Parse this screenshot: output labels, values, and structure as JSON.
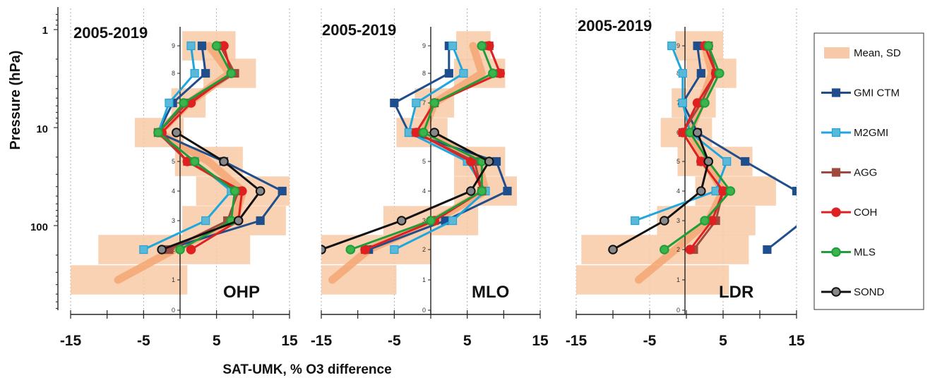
{
  "chart_data": {
    "type": "line",
    "y_axis": {
      "label": "Pressure (hPa)",
      "scale": "log",
      "direction": "reversed",
      "ticks": [
        "1",
        "10",
        "100"
      ]
    },
    "x_axis": {
      "label": "SAT-UMK, % O3 difference",
      "ticks": [
        "-15",
        "-5",
        "5",
        "15"
      ],
      "range": [
        -15,
        15
      ]
    },
    "layer_axis": {
      "ticks": [
        "0",
        "1",
        "2",
        "3",
        "4",
        "5",
        "6",
        "7",
        "8",
        "9"
      ]
    },
    "legend": {
      "placement": "right",
      "entries": [
        "Mean, SD",
        "GMI CTM",
        "M2GMI",
        "AGG",
        "COH",
        "MLS",
        "SOND"
      ]
    },
    "series_styles": {
      "GMI CTM": {
        "color": "#1f4e8c",
        "marker": "square"
      },
      "M2GMI": {
        "color": "#1ea7dc",
        "marker": "square",
        "marker_fill": "#5bb8d6"
      },
      "AGG": {
        "color": "#9e4a3f",
        "marker": "square"
      },
      "COH": {
        "color": "#e02020",
        "marker": "circle"
      },
      "MLS": {
        "color": "#1e9e3a",
        "marker": "circle",
        "marker_fill": "#3cb44b"
      },
      "SOND": {
        "color": "#111111",
        "marker": "circle",
        "marker_fill": "#888888"
      },
      "Mean, SD": {
        "color": "#f5a878",
        "type": "band"
      }
    },
    "panels": [
      {
        "title": "2005-2019",
        "station": "OHP",
        "layers": [
          1,
          2,
          3,
          4,
          5,
          6,
          7,
          8,
          9
        ],
        "sd_band": [
          {
            "layer": 1,
            "lo": -15,
            "hi": 1
          },
          {
            "layer": 2,
            "lo": -11.2,
            "hi": 9.6
          },
          {
            "layer": 3,
            "lo": 0.3,
            "hi": 14.5
          },
          {
            "layer": 4,
            "lo": 2.2,
            "hi": 15.0
          },
          {
            "layer": 5,
            "lo": -0.7,
            "hi": 8.6
          },
          {
            "layer": 6,
            "lo": -6.2,
            "hi": 0.5
          },
          {
            "layer": 7,
            "lo": -1.2,
            "hi": 3.5
          },
          {
            "layer": 8,
            "lo": 3.2,
            "hi": 10.4
          },
          {
            "layer": 9,
            "lo": 0.3,
            "hi": 7.6
          }
        ],
        "mean": [
          {
            "layer": 1,
            "x": -8.5
          },
          {
            "layer": 2,
            "x": -0.8
          },
          {
            "layer": 3,
            "x": 7.5
          },
          {
            "layer": 4,
            "x": 8.6
          },
          {
            "layer": 5,
            "x": 3.9
          },
          {
            "layer": 6,
            "x": -2.9
          },
          {
            "layer": 7,
            "x": 1.2
          },
          {
            "layer": 8,
            "x": 6.8
          },
          {
            "layer": 9,
            "x": 4.0
          }
        ],
        "series": [
          {
            "name": "GMI CTM",
            "layers": [
              2,
              3,
              4,
              5,
              6,
              7,
              8,
              9
            ],
            "values": [
              -2.0,
              11.0,
              14.0,
              6.0,
              -3.0,
              -1.0,
              3.5,
              3.0
            ]
          },
          {
            "name": "M2GMI",
            "layers": [
              2,
              3,
              4,
              5,
              6,
              7,
              8,
              9
            ],
            "values": [
              -5.0,
              3.5,
              7.0,
              2.0,
              -3.0,
              -1.5,
              2.0,
              1.5
            ]
          },
          {
            "name": "AGG",
            "layers": [
              2,
              3,
              4,
              5,
              6,
              7,
              8,
              9
            ],
            "values": [
              -1.5,
              6.5,
              8.0,
              1.0,
              -3.0,
              1.0,
              7.5,
              5.5
            ]
          },
          {
            "name": "COH",
            "layers": [
              2,
              3,
              4,
              5,
              6,
              7,
              8,
              9
            ],
            "values": [
              1.5,
              8.0,
              8.5,
              1.0,
              -2.5,
              1.5,
              7.0,
              6.0
            ]
          },
          {
            "name": "MLS",
            "layers": [
              2,
              3,
              4,
              5,
              6,
              7,
              8,
              9
            ],
            "values": [
              0.0,
              7.0,
              7.5,
              2.0,
              -3.0,
              0.5,
              7.0,
              5.0
            ]
          },
          {
            "name": "SOND",
            "layers": [
              2,
              3,
              4,
              5,
              6
            ],
            "values": [
              -2.5,
              8.0,
              11.0,
              6.0,
              -0.5
            ]
          }
        ]
      },
      {
        "title": "2005-2019",
        "station": "MLO",
        "layers": [
          1,
          2,
          3,
          4,
          5,
          6,
          7,
          8,
          9
        ],
        "sd_band": [
          {
            "layer": 1,
            "lo": -15,
            "hi": -4.7
          },
          {
            "layer": 2,
            "lo": -15,
            "hi": 0
          },
          {
            "layer": 3,
            "lo": -6.5,
            "hi": 6.5
          },
          {
            "layer": 4,
            "lo": 3.2,
            "hi": 11.8
          },
          {
            "layer": 5,
            "lo": 3.2,
            "hi": 10.2
          },
          {
            "layer": 6,
            "lo": -4.7,
            "hi": 2.3
          },
          {
            "layer": 7,
            "lo": -2.2,
            "hi": 3.2
          },
          {
            "layer": 8,
            "lo": 3.2,
            "hi": 10.2
          },
          {
            "layer": 9,
            "lo": 3.5,
            "hi": 8.2
          }
        ],
        "mean": [
          {
            "layer": 1,
            "x": -13.5
          },
          {
            "layer": 2,
            "x": -8.5
          },
          {
            "layer": 3,
            "x": 0.5
          },
          {
            "layer": 4,
            "x": 7.5
          },
          {
            "layer": 5,
            "x": 6.5
          },
          {
            "layer": 6,
            "x": -1.0
          },
          {
            "layer": 7,
            "x": 0.5
          },
          {
            "layer": 8,
            "x": 7.0
          },
          {
            "layer": 9,
            "x": 5.8
          }
        ],
        "series": [
          {
            "name": "GMI CTM",
            "layers": [
              2,
              3,
              4,
              5,
              6,
              7,
              8,
              9
            ],
            "values": [
              -8.5,
              2.0,
              10.5,
              9.0,
              -3.0,
              -5.0,
              2.5,
              2.5
            ]
          },
          {
            "name": "M2GMI",
            "layers": [
              2,
              3,
              4,
              5,
              6,
              7,
              8,
              9
            ],
            "values": [
              -5.0,
              3.0,
              7.5,
              5.0,
              -3.0,
              -2.0,
              4.5,
              3.0
            ]
          },
          {
            "name": "AGG",
            "layers": [
              2,
              3,
              4,
              5,
              6,
              7,
              8,
              9
            ],
            "values": [
              -9.0,
              0.5,
              7.0,
              6.0,
              -2.0,
              0.5,
              9.5,
              8.0
            ]
          },
          {
            "name": "COH",
            "layers": [
              2,
              3,
              4,
              5,
              6,
              7,
              8,
              9
            ],
            "values": [
              -9.0,
              0.5,
              7.0,
              5.5,
              -2.0,
              0.5,
              9.5,
              8.0
            ]
          },
          {
            "name": "MLS",
            "layers": [
              2,
              3,
              4,
              5,
              6,
              7,
              8,
              9
            ],
            "values": [
              -11.0,
              0.0,
              7.0,
              7.0,
              -1.0,
              0.5,
              8.5,
              7.0
            ]
          },
          {
            "name": "SOND",
            "layers": [
              2,
              3,
              4,
              5,
              6
            ],
            "values": [
              -15.0,
              -4.0,
              5.5,
              8.0,
              0.5
            ]
          }
        ]
      },
      {
        "title": "2005-2019",
        "station": "LDR",
        "layers": [
          1,
          2,
          3,
          4,
          5,
          6,
          7,
          8,
          9
        ],
        "sd_band": [
          {
            "layer": 1,
            "lo": -15,
            "hi": 5.8
          },
          {
            "layer": 2,
            "lo": -14.3,
            "hi": 8.5
          },
          {
            "layer": 3,
            "lo": -4.0,
            "hi": 9.4
          },
          {
            "layer": 4,
            "lo": 1.2,
            "hi": 12.2
          },
          {
            "layer": 5,
            "lo": -1.2,
            "hi": 9.0
          },
          {
            "layer": 6,
            "lo": -3.5,
            "hi": 3.5
          },
          {
            "layer": 7,
            "lo": -2.0,
            "hi": 4.0
          },
          {
            "layer": 8,
            "lo": 0.0,
            "hi": 6.8
          },
          {
            "layer": 9,
            "lo": -1.5,
            "hi": 5.0
          }
        ],
        "mean": [
          {
            "layer": 1,
            "x": -6.5
          },
          {
            "layer": 2,
            "x": -1.5
          },
          {
            "layer": 3,
            "x": 3.0
          },
          {
            "layer": 4,
            "x": 5.0
          },
          {
            "layer": 5,
            "x": 2.5
          },
          {
            "layer": 6,
            "x": 0.5
          },
          {
            "layer": 7,
            "x": 2.0
          },
          {
            "layer": 8,
            "x": 3.5
          },
          {
            "layer": 9,
            "x": 2.5
          }
        ],
        "series": [
          {
            "name": "GMI CTM",
            "layers": [
              2,
              3,
              4,
              5,
              6,
              7,
              8,
              9
            ],
            "values": [
              11.0,
              16.0,
              15.0,
              8.0,
              1.5,
              -0.5,
              2.0,
              1.5
            ]
          },
          {
            "name": "M2GMI",
            "layers": [
              3,
              4,
              5,
              6,
              7,
              8,
              9
            ],
            "values": [
              -7.0,
              4.0,
              5.5,
              0.5,
              -0.5,
              -0.5,
              -2.0
            ]
          },
          {
            "name": "AGG",
            "layers": [
              2,
              3,
              4,
              5,
              6,
              7,
              8,
              9
            ],
            "values": [
              1.0,
              4.0,
              5.0,
              2.0,
              -0.5,
              2.0,
              4.0,
              3.0
            ]
          },
          {
            "name": "COH",
            "layers": [
              2,
              3,
              4,
              5,
              6,
              7,
              8,
              9
            ],
            "values": [
              0.5,
              3.5,
              5.0,
              2.0,
              -0.5,
              1.5,
              4.0,
              2.5
            ]
          },
          {
            "name": "MLS",
            "layers": [
              2,
              3,
              4,
              5,
              6,
              7,
              8,
              9
            ],
            "values": [
              -3.0,
              2.5,
              6.0,
              3.0,
              0.5,
              2.5,
              4.5,
              3.0
            ]
          },
          {
            "name": "SOND",
            "layers": [
              2,
              3,
              4,
              5,
              6
            ],
            "values": [
              -10.0,
              -3.0,
              2.0,
              3.0,
              1.5
            ]
          }
        ]
      }
    ]
  }
}
